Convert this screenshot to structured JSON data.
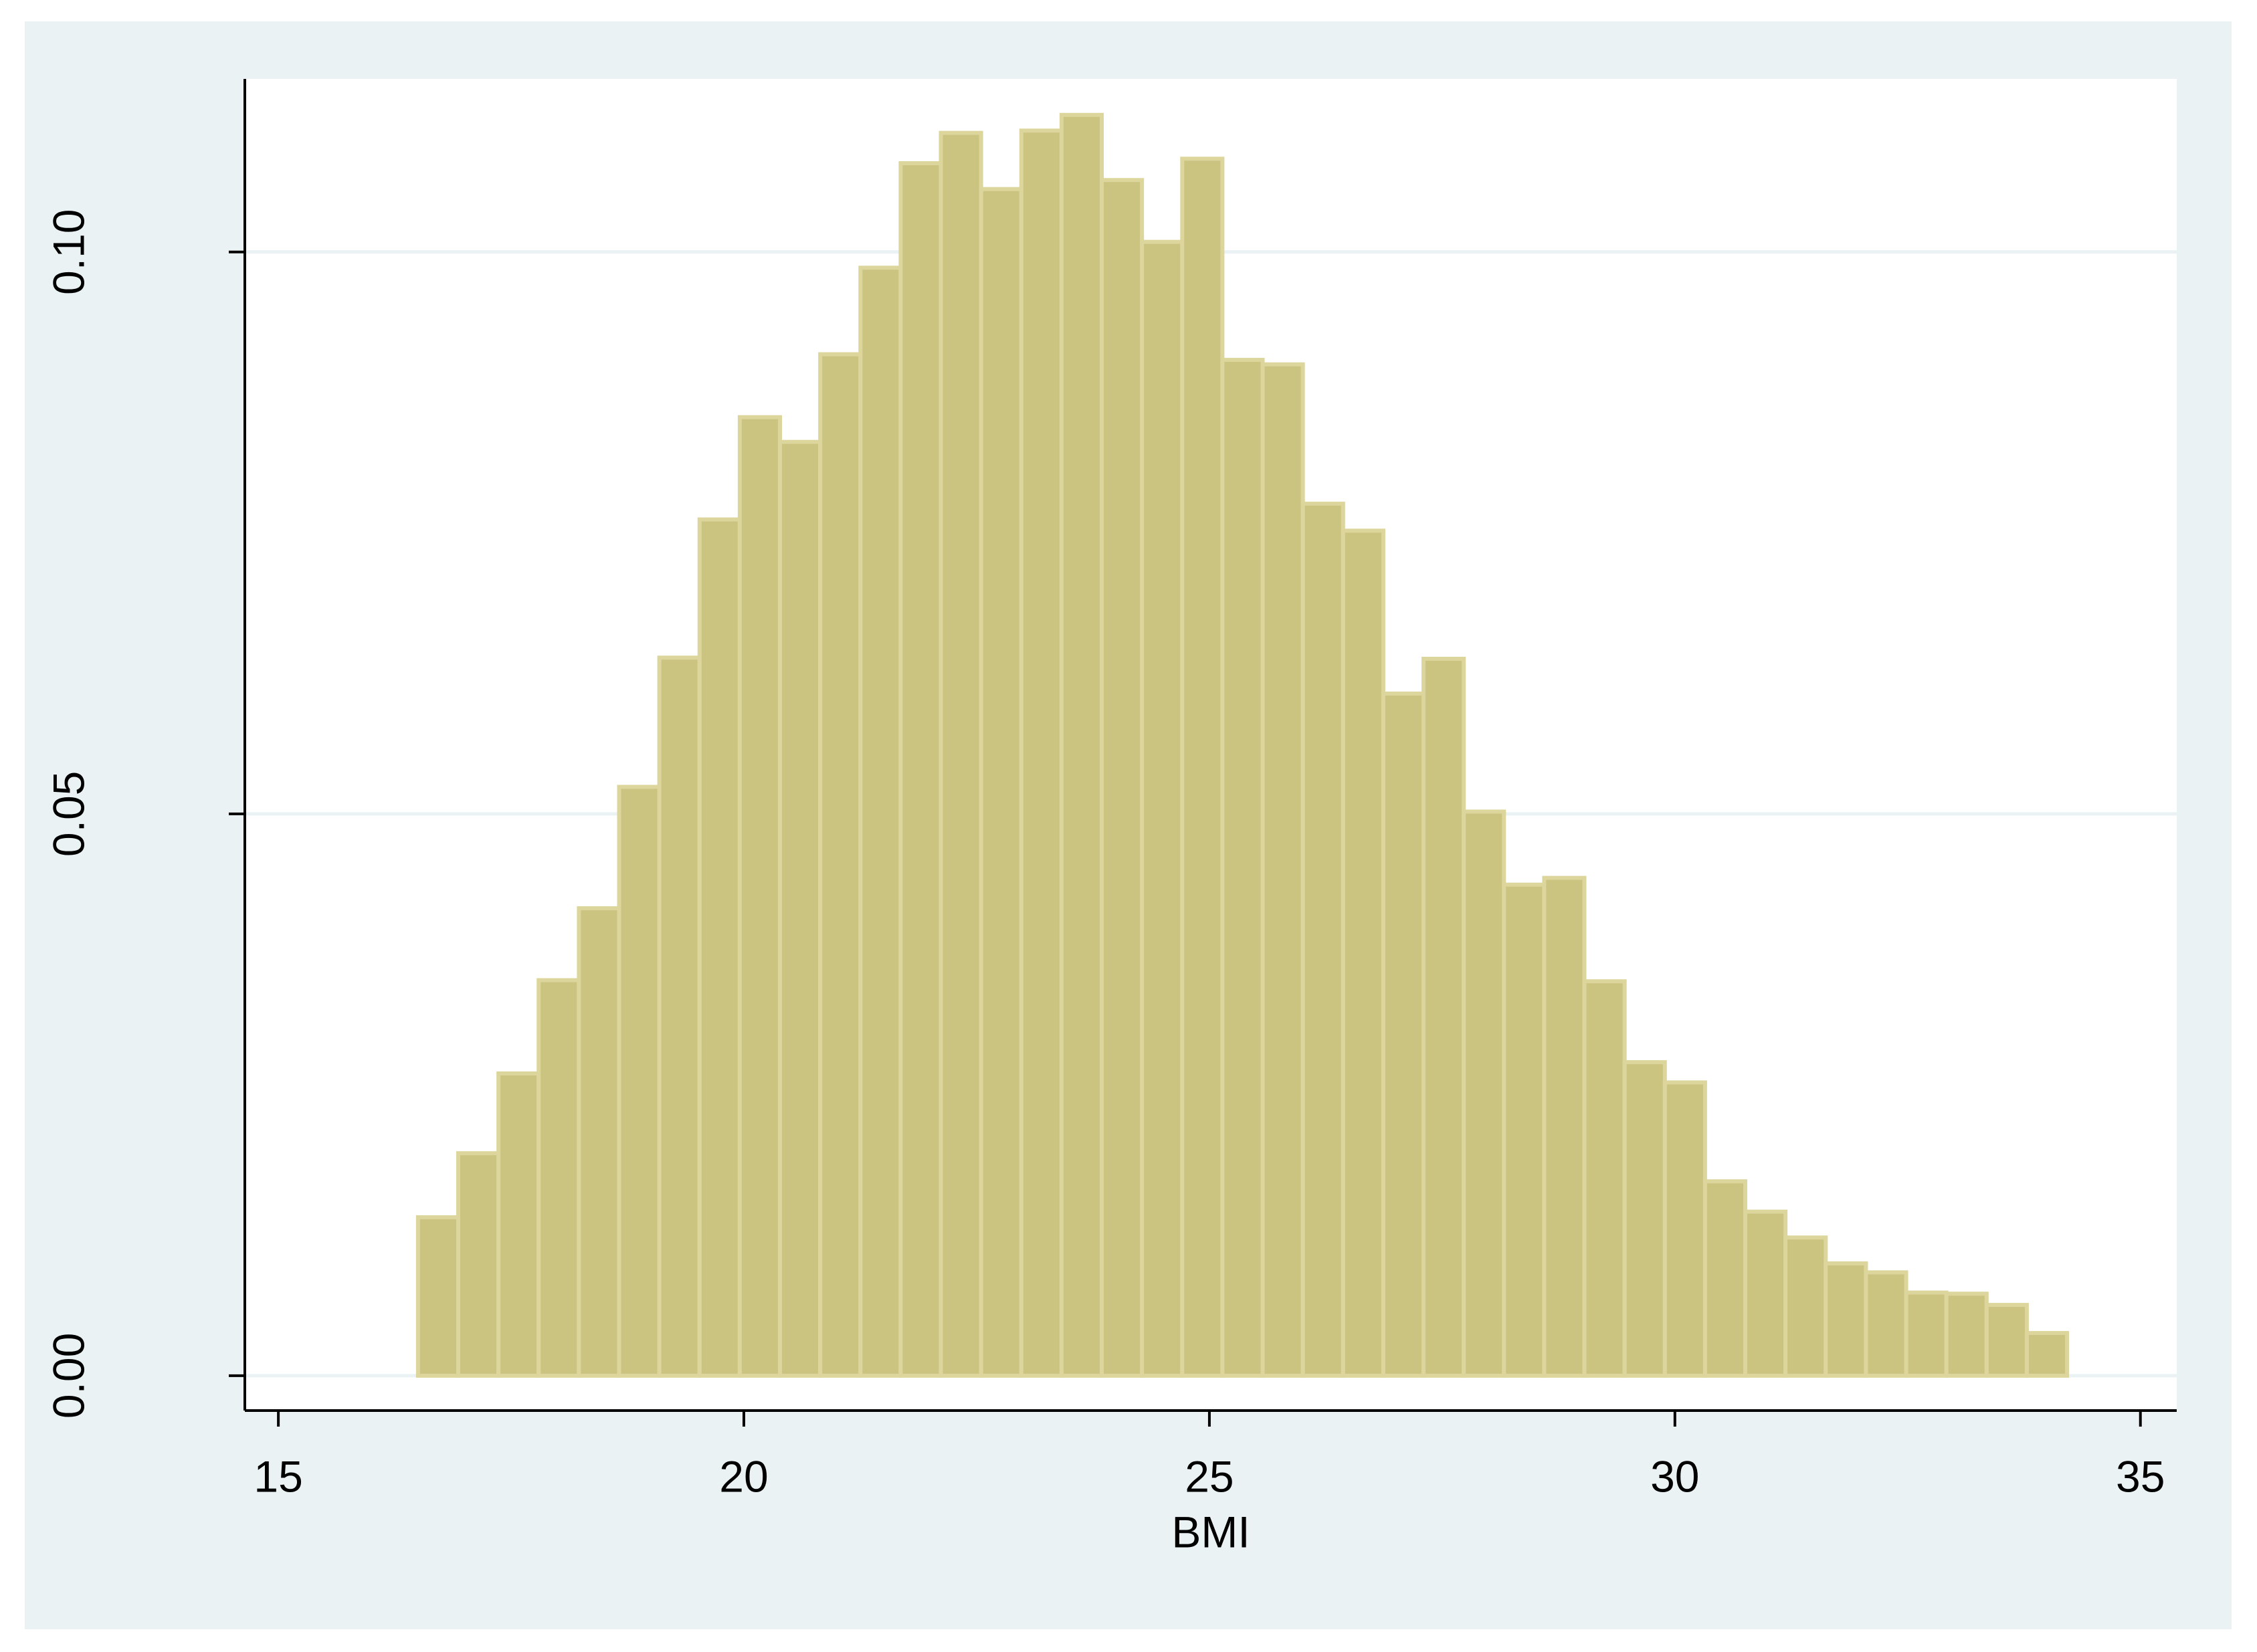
{
  "chart_data": {
    "type": "histogram",
    "x_label": "BMI",
    "bins": [
      16.5,
      16.932,
      17.364,
      17.796,
      18.228,
      18.66,
      19.092,
      19.524,
      19.956,
      20.388,
      20.82,
      21.252,
      21.684,
      22.116,
      22.548,
      22.98,
      23.412,
      23.844,
      24.276,
      24.708,
      25.14,
      25.572,
      26.004,
      26.436,
      26.868,
      27.3,
      27.732,
      28.164,
      28.596,
      29.028,
      29.46,
      29.892,
      30.324,
      30.756,
      31.188,
      31.62,
      32.052,
      32.484,
      32.916,
      33.348,
      33.78,
      34.212
    ],
    "values": [
      0.0141,
      0.0198,
      0.0269,
      0.0352,
      0.0416,
      0.0524,
      0.0639,
      0.0762,
      0.0853,
      0.0831,
      0.0909,
      0.0986,
      0.1079,
      0.1106,
      0.1056,
      0.1108,
      0.1122,
      0.1064,
      0.1009,
      0.1083,
      0.0904,
      0.09,
      0.0776,
      0.0752,
      0.0607,
      0.0638,
      0.0502,
      0.0437,
      0.0443,
      0.0351,
      0.0279,
      0.0261,
      0.0173,
      0.0146,
      0.0123,
      0.01,
      0.0092,
      0.0074,
      0.0073,
      0.0063,
      0.0038
    ],
    "color": "#cbc380",
    "edge_color": "#ddd69c",
    "xlim": [
      14.64,
      35.39
    ],
    "ylim": [
      -0.0031,
      0.1154
    ],
    "xticks": [
      15,
      20,
      25,
      30,
      35
    ],
    "yticks": [
      {
        "value": 0,
        "label": "0.00"
      },
      {
        "value": 0.05,
        "label": "0.05"
      },
      {
        "value": 0.1,
        "label": "0.10"
      }
    ],
    "grid": true
  }
}
